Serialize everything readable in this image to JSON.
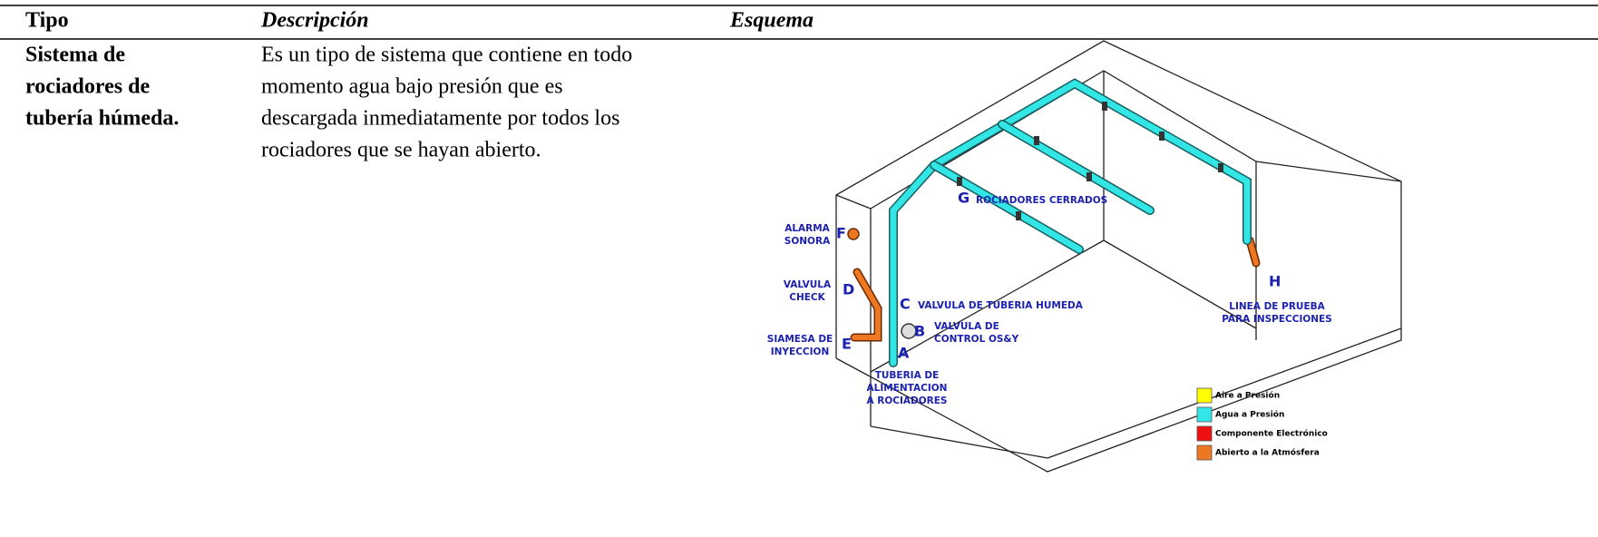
{
  "table": {
    "headers": [
      "Tipo",
      "Descripción",
      "Esquema"
    ],
    "rows": [
      [
        [
          "Sistema de",
          "rociadores de",
          "tubería húmeda."
        ],
        [
          "Es un tipo de sistema que contiene en todo",
          "momento agua bajo presión que es",
          "descargada inmediatamente por todos los",
          "rociadores que se hayan abierto."
        ]
      ]
    ]
  },
  "diagram": {
    "callouts": [
      {
        "letter": "F",
        "lines": [
          "ALARMA",
          "SONORA"
        ]
      },
      {
        "letter": "D",
        "lines": [
          "VALVULA",
          "CHECK"
        ]
      },
      {
        "letter": "E",
        "lines": [
          "SIAMESA DE",
          "INYECCION"
        ]
      },
      {
        "letter": "C",
        "lines": [
          "VALVULA DE TUBERIA HUMEDA"
        ]
      },
      {
        "letter": "B",
        "lines": [
          "VALVULA DE",
          "CONTROL OS&Y"
        ]
      },
      {
        "letter": "A",
        "lines": [
          "TUBERIA DE",
          "ALIMENTACION",
          "A ROCIADORES"
        ]
      },
      {
        "letter": "G",
        "lines": [
          "ROCIADORES CERRADOS"
        ]
      },
      {
        "letter": "H",
        "lines": [
          "LINEA DE PRUEBA",
          "PARA INSPECCIONES"
        ]
      }
    ],
    "legend": [
      {
        "label": "Aire a Presión",
        "color": "#ffff00"
      },
      {
        "label": "Agua a Presión",
        "color": "#33e6e6"
      },
      {
        "label": "Componente Electrónico",
        "color": "#ee1111"
      },
      {
        "label": "Abierto a la Atmósfera",
        "color": "#ee7722"
      }
    ]
  }
}
